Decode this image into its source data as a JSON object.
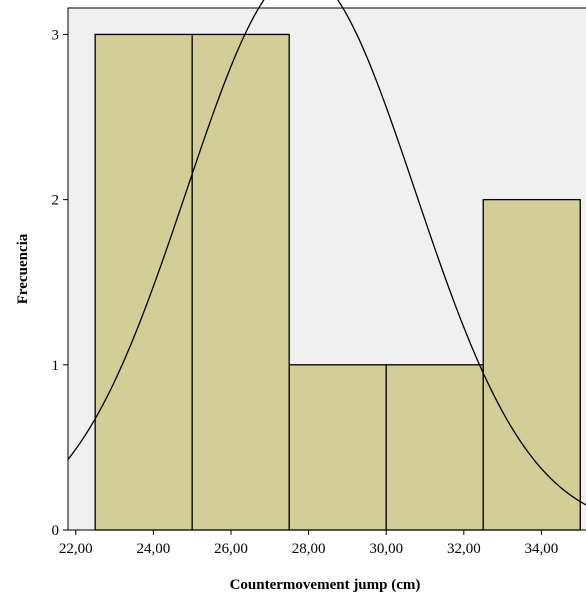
{
  "chart_data": {
    "type": "bar",
    "subtype": "histogram",
    "xlabel": "Countermovement jump (cm)",
    "ylabel": "Frecuencia",
    "bins": [
      {
        "start": 22.5,
        "end": 25.0,
        "count": 3
      },
      {
        "start": 25.0,
        "end": 27.5,
        "count": 3
      },
      {
        "start": 27.5,
        "end": 30.0,
        "count": 1
      },
      {
        "start": 30.0,
        "end": 32.5,
        "count": 1
      },
      {
        "start": 32.5,
        "end": 35.0,
        "count": 2
      }
    ],
    "xticks": [
      "22,00",
      "24,00",
      "26,00",
      "28,00",
      "30,00",
      "32,00",
      "34,00"
    ],
    "xtick_values": [
      22,
      24,
      26,
      28,
      30,
      32,
      34
    ],
    "yticks": [
      "0",
      "1",
      "2",
      "3"
    ],
    "ytick_values": [
      0,
      1,
      2,
      3
    ],
    "xlim": [
      21.8,
      35.2
    ],
    "ylim": [
      0,
      3.16
    ],
    "normal_curve": {
      "mean": 27.8,
      "sd": 2.95,
      "n": 10,
      "bin_width": 2.5
    },
    "grid": false,
    "colors": {
      "bar_fill": "#d3cd98",
      "bar_stroke": "#000000",
      "plot_background": "#f0f0f0",
      "curve": "#000000"
    }
  }
}
